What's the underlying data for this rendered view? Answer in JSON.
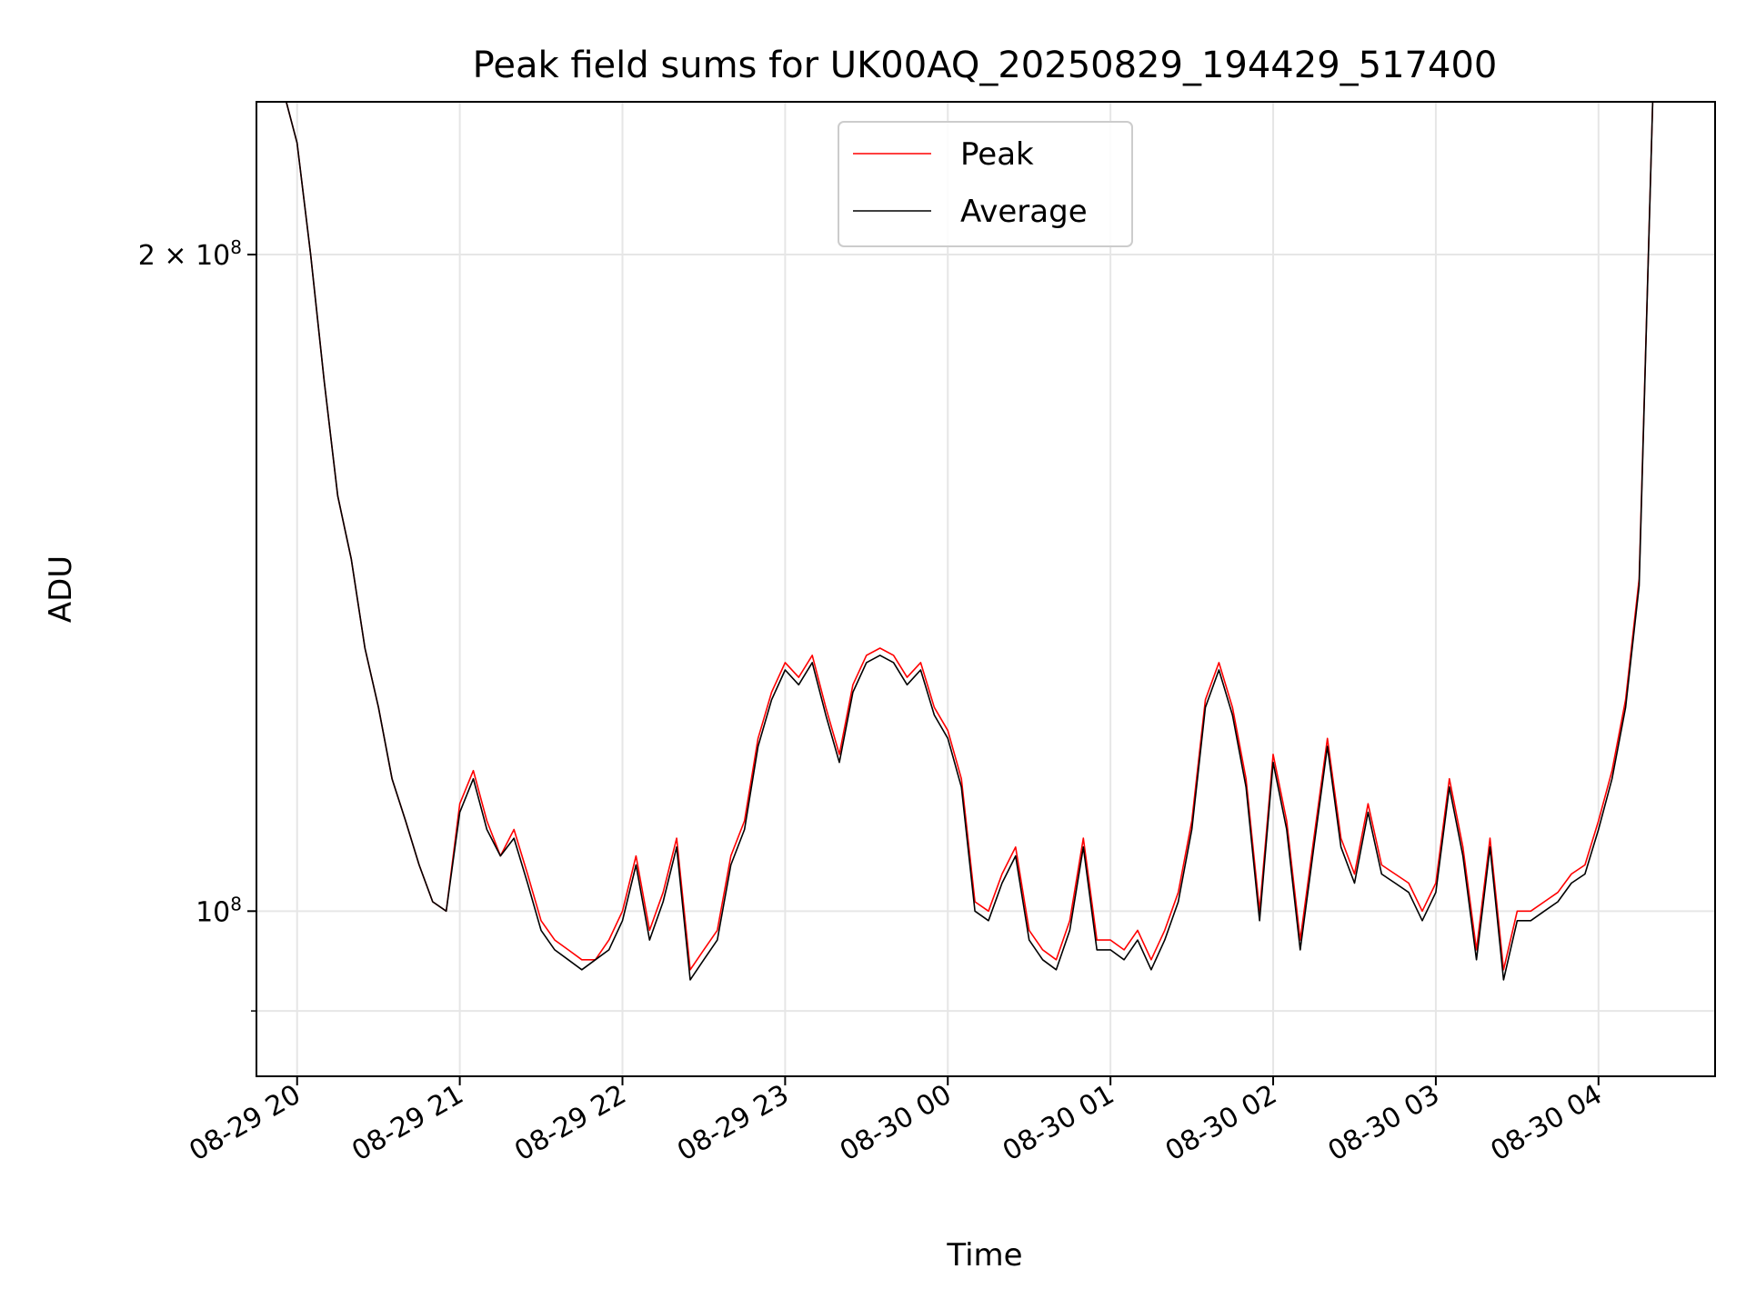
{
  "chart_data": {
    "type": "line",
    "title": "Peak field sums for UK00AQ_20250829_194429_517400",
    "xlabel": "Time",
    "ylabel": "ADU",
    "yscale": "log",
    "ylim": [
      84000000,
      235000000
    ],
    "xlim": [
      "2025-08-29 19:45",
      "2025-08-30 04:43"
    ],
    "x_ticks": [
      "08-29 20",
      "08-29 21",
      "08-29 22",
      "08-29 23",
      "08-30 00",
      "08-30 01",
      "08-30 02",
      "08-30 03",
      "08-30 04"
    ],
    "y_ticks": [
      {
        "value": 200000000,
        "label": "2 × 10",
        "exp": "8"
      },
      {
        "value": 100000000,
        "label": "10",
        "exp": "8"
      }
    ],
    "grid": true,
    "legend_position": "top-center",
    "colors": {
      "peak": "#ff0000",
      "average": "#000000"
    },
    "x": [
      "2025-08-29 19:56",
      "2025-08-29 20:00",
      "2025-08-29 20:05",
      "2025-08-29 20:10",
      "2025-08-29 20:15",
      "2025-08-29 20:20",
      "2025-08-29 20:25",
      "2025-08-29 20:30",
      "2025-08-29 20:35",
      "2025-08-29 20:40",
      "2025-08-29 20:45",
      "2025-08-29 20:50",
      "2025-08-29 20:55",
      "2025-08-29 21:00",
      "2025-08-29 21:05",
      "2025-08-29 21:10",
      "2025-08-29 21:15",
      "2025-08-29 21:20",
      "2025-08-29 21:25",
      "2025-08-29 21:30",
      "2025-08-29 21:35",
      "2025-08-29 21:40",
      "2025-08-29 21:45",
      "2025-08-29 21:50",
      "2025-08-29 21:55",
      "2025-08-29 22:00",
      "2025-08-29 22:05",
      "2025-08-29 22:10",
      "2025-08-29 22:15",
      "2025-08-29 22:20",
      "2025-08-29 22:25",
      "2025-08-29 22:30",
      "2025-08-29 22:35",
      "2025-08-29 22:40",
      "2025-08-29 22:45",
      "2025-08-29 22:50",
      "2025-08-29 22:55",
      "2025-08-29 23:00",
      "2025-08-29 23:05",
      "2025-08-29 23:10",
      "2025-08-29 23:15",
      "2025-08-29 23:20",
      "2025-08-29 23:25",
      "2025-08-29 23:30",
      "2025-08-29 23:35",
      "2025-08-29 23:40",
      "2025-08-29 23:45",
      "2025-08-29 23:50",
      "2025-08-29 23:55",
      "2025-08-30 00:00",
      "2025-08-30 00:05",
      "2025-08-30 00:10",
      "2025-08-30 00:15",
      "2025-08-30 00:20",
      "2025-08-30 00:25",
      "2025-08-30 00:30",
      "2025-08-30 00:35",
      "2025-08-30 00:40",
      "2025-08-30 00:45",
      "2025-08-30 00:50",
      "2025-08-30 00:55",
      "2025-08-30 01:00",
      "2025-08-30 01:05",
      "2025-08-30 01:10",
      "2025-08-30 01:15",
      "2025-08-30 01:20",
      "2025-08-30 01:25",
      "2025-08-30 01:30",
      "2025-08-30 01:35",
      "2025-08-30 01:40",
      "2025-08-30 01:45",
      "2025-08-30 01:50",
      "2025-08-30 01:55",
      "2025-08-30 02:00",
      "2025-08-30 02:05",
      "2025-08-30 02:10",
      "2025-08-30 02:15",
      "2025-08-30 02:20",
      "2025-08-30 02:25",
      "2025-08-30 02:30",
      "2025-08-30 02:35",
      "2025-08-30 02:40",
      "2025-08-30 02:45",
      "2025-08-30 02:50",
      "2025-08-30 02:55",
      "2025-08-30 03:00",
      "2025-08-30 03:05",
      "2025-08-30 03:10",
      "2025-08-30 03:15",
      "2025-08-30 03:20",
      "2025-08-30 03:25",
      "2025-08-30 03:30",
      "2025-08-30 03:35",
      "2025-08-30 03:40",
      "2025-08-30 03:45",
      "2025-08-30 03:50",
      "2025-08-30 03:55",
      "2025-08-30 04:00",
      "2025-08-30 04:05",
      "2025-08-30 04:10",
      "2025-08-30 04:15",
      "2025-08-30 04:20"
    ],
    "series": [
      {
        "name": "Peak",
        "values": [
          235000000,
          225000000,
          200000000,
          175000000,
          155000000,
          145000000,
          132000000,
          124000000,
          115000000,
          110000000,
          105000000,
          101000000,
          100000000,
          112000000,
          116000000,
          110000000,
          106000000,
          109000000,
          104000000,
          99000000,
          97000000,
          96000000,
          95000000,
          95000000,
          97000000,
          100000000,
          106000000,
          98000000,
          102000000,
          108000000,
          94000000,
          96000000,
          98000000,
          106000000,
          110000000,
          120000000,
          126000000,
          130000000,
          128000000,
          131000000,
          124000000,
          118000000,
          127000000,
          131000000,
          132000000,
          131000000,
          128000000,
          130000000,
          124000000,
          121000000,
          115000000,
          101000000,
          100000000,
          104000000,
          107000000,
          98000000,
          96000000,
          95000000,
          99000000,
          108000000,
          97000000,
          97000000,
          96000000,
          98000000,
          95000000,
          98000000,
          102000000,
          110000000,
          125000000,
          130000000,
          124000000,
          115000000,
          100000000,
          118000000,
          110000000,
          97000000,
          108000000,
          120000000,
          108000000,
          104000000,
          112000000,
          105000000,
          104000000,
          103000000,
          100000000,
          103000000,
          115000000,
          107000000,
          96000000,
          108000000,
          94000000,
          100000000,
          100000000,
          101000000,
          102000000,
          104000000,
          105000000,
          110000000,
          116000000,
          125000000,
          142000000,
          235000000
        ]
      },
      {
        "name": "Average",
        "values": [
          235000000,
          225000000,
          200000000,
          175000000,
          155000000,
          145000000,
          132000000,
          124000000,
          115000000,
          110000000,
          105000000,
          101000000,
          100000000,
          111000000,
          115000000,
          109000000,
          106000000,
          108000000,
          103000000,
          98000000,
          96000000,
          95000000,
          94000000,
          95000000,
          96000000,
          99000000,
          105000000,
          97000000,
          101000000,
          107000000,
          93000000,
          95000000,
          97000000,
          105000000,
          109000000,
          119000000,
          125000000,
          129000000,
          127000000,
          130000000,
          123000000,
          117000000,
          126000000,
          130000000,
          131000000,
          130000000,
          127000000,
          129000000,
          123000000,
          120000000,
          114000000,
          100000000,
          99000000,
          103000000,
          106000000,
          97000000,
          95000000,
          94000000,
          98000000,
          107000000,
          96000000,
          96000000,
          95000000,
          97000000,
          94000000,
          97000000,
          101000000,
          109000000,
          124000000,
          129000000,
          123000000,
          114000000,
          99000000,
          117000000,
          109000000,
          96000000,
          107000000,
          119000000,
          107000000,
          103000000,
          111000000,
          104000000,
          103000000,
          102000000,
          99000000,
          102000000,
          114000000,
          106000000,
          95000000,
          107000000,
          93000000,
          99000000,
          99000000,
          100000000,
          101000000,
          103000000,
          104000000,
          109000000,
          115000000,
          124000000,
          141000000,
          235000000
        ]
      }
    ]
  }
}
